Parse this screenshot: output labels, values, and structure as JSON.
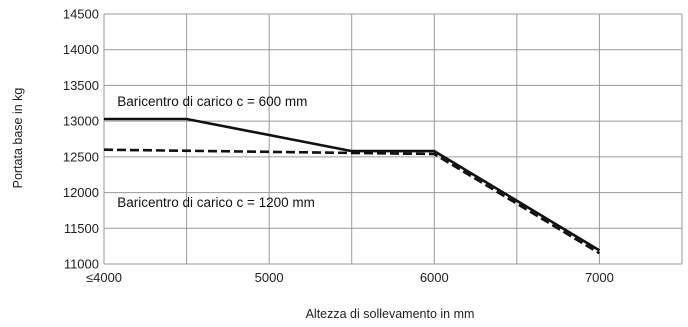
{
  "chart_data": {
    "type": "line",
    "title": "",
    "xlabel": "Altezza di sollevamento in mm",
    "ylabel": "Portata base in kg",
    "xlim": [
      4000,
      7500
    ],
    "ylim": [
      11000,
      14500
    ],
    "x_ticks": [
      4000,
      5000,
      6000,
      7000
    ],
    "x_tick_labels": [
      "≤4000",
      "5000",
      "6000",
      "7000"
    ],
    "y_ticks": [
      11000,
      11500,
      12000,
      12500,
      13000,
      13500,
      14000,
      14500
    ],
    "y_tick_labels": [
      "11000",
      "11500",
      "12000",
      "12500",
      "13000",
      "13500",
      "14000",
      "14500"
    ],
    "x_grid": [
      4000,
      4500,
      5000,
      5500,
      6000,
      6500,
      7000,
      7500
    ],
    "grid": true,
    "legend": "none",
    "series": [
      {
        "name": "Baricentro di carico c = 600 mm",
        "style": "solid",
        "color": "#111111",
        "points": [
          [
            4000,
            13030
          ],
          [
            4500,
            13030
          ],
          [
            5500,
            12580
          ],
          [
            6000,
            12580
          ],
          [
            7000,
            11190
          ]
        ]
      },
      {
        "name": "Baricentro di carico c = 1200 mm",
        "style": "dashed",
        "color": "#111111",
        "points": [
          [
            4000,
            12600
          ],
          [
            6000,
            12540
          ],
          [
            7000,
            11150
          ]
        ]
      }
    ],
    "annotations": [
      {
        "text": "Baricentro di carico c = 600 mm",
        "x": 4080,
        "y": 13210
      },
      {
        "text": "Baricentro di carico c = 1200 mm",
        "x": 4080,
        "y": 11800
      }
    ]
  }
}
